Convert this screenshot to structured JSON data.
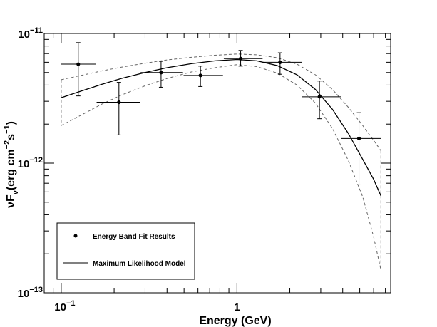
{
  "chart_data": {
    "type": "scatter",
    "xscale": "log",
    "yscale": "log",
    "xlim": [
      0.08,
      7.5
    ],
    "ylim": [
      1e-13,
      1e-11
    ],
    "xlabel": "Energy (GeV)",
    "ylabel": "νF",
    "ylabel_sub": "ν",
    "ylabel_units": "(erg cm",
    "ylabel_sup1": "−2",
    "ylabel_mid": "s",
    "ylabel_sup2": "−1",
    "ylabel_close": ")",
    "x_ticks": [
      {
        "value": 0.1,
        "base": "10",
        "exp": "−1"
      },
      {
        "value": 1,
        "base": "1",
        "exp": ""
      }
    ],
    "y_ticks": [
      {
        "value": 1e-11,
        "base": "10",
        "exp": "−11"
      },
      {
        "value": 1e-12,
        "base": "10",
        "exp": "−12"
      },
      {
        "value": 1e-13,
        "base": "10",
        "exp": "−13"
      }
    ],
    "data_points": [
      {
        "x": 0.125,
        "xlo": 0.1,
        "xhi": 0.157,
        "y": 5.8e-12,
        "ylo": 3.3e-12,
        "yhi": 8.5e-12
      },
      {
        "x": 0.213,
        "xlo": 0.159,
        "xhi": 0.282,
        "y": 2.95e-12,
        "ylo": 1.65e-12,
        "yhi": 4.2e-12
      },
      {
        "x": 0.37,
        "xlo": 0.283,
        "xhi": 0.493,
        "y": 5e-12,
        "ylo": 3.85e-12,
        "yhi": 6.1e-12
      },
      {
        "x": 0.62,
        "xlo": 0.497,
        "xhi": 0.833,
        "y": 4.75e-12,
        "ylo": 3.9e-12,
        "yhi": 5.6e-12
      },
      {
        "x": 1.05,
        "xlo": 0.842,
        "xhi": 1.4,
        "y": 6.4e-12,
        "ylo": 5.6e-12,
        "yhi": 7.4e-12
      },
      {
        "x": 1.76,
        "xlo": 1.4,
        "xhi": 2.34,
        "y": 6e-12,
        "ylo": 4.85e-12,
        "yhi": 7.1e-12
      },
      {
        "x": 2.95,
        "xlo": 2.35,
        "xhi": 3.92,
        "y": 3.25e-12,
        "ylo": 2.2e-12,
        "yhi": 4.3e-12
      },
      {
        "x": 4.95,
        "xlo": 3.92,
        "xhi": 6.6,
        "y": 1.55e-12,
        "ylo": 6.8e-13,
        "yhi": 2.45e-12
      }
    ],
    "model": {
      "x": [
        0.1,
        0.13,
        0.17,
        0.22,
        0.3,
        0.4,
        0.55,
        0.75,
        1.0,
        1.3,
        1.7,
        2.2,
        2.8,
        3.5,
        4.3,
        5.2,
        6.0,
        6.6
      ],
      "y": [
        3.2e-12,
        3.6e-12,
        4.05e-12,
        4.5e-12,
        5e-12,
        5.45e-12,
        5.85e-12,
        6.15e-12,
        6.3e-12,
        6.15e-12,
        5.65e-12,
        4.8e-12,
        3.7e-12,
        2.6e-12,
        1.7e-12,
        1.07e-12,
        7.5e-13,
        5.6e-13
      ]
    },
    "band_upper": {
      "x": [
        0.1,
        0.13,
        0.17,
        0.22,
        0.3,
        0.4,
        0.55,
        0.75,
        1.0,
        1.3,
        1.7,
        2.2,
        2.8,
        3.5,
        4.3,
        5.2,
        6.0,
        6.6
      ],
      "y": [
        4.4e-12,
        4.75e-12,
        5.15e-12,
        5.5e-12,
        5.9e-12,
        6.25e-12,
        6.55e-12,
        6.8e-12,
        6.95e-12,
        6.85e-12,
        6.5e-12,
        5.8e-12,
        4.8e-12,
        3.7e-12,
        2.7e-12,
        1.95e-12,
        1.5e-12,
        1.25e-12
      ]
    },
    "band_lower": {
      "x": [
        0.1,
        0.13,
        0.17,
        0.22,
        0.3,
        0.4,
        0.55,
        0.75,
        1.0,
        1.3,
        1.7,
        2.2,
        2.8,
        3.5,
        4.3,
        5.2,
        6.0,
        6.6
      ],
      "y": [
        1.95e-12,
        2.35e-12,
        2.85e-12,
        3.35e-12,
        3.95e-12,
        4.5e-12,
        5.05e-12,
        5.45e-12,
        5.75e-12,
        5.55e-12,
        4.95e-12,
        4e-12,
        2.9e-12,
        1.85e-12,
        1.05e-12,
        5.5e-13,
        2.7e-13,
        1.5e-13
      ]
    },
    "legend": {
      "position": "bottom-left",
      "entries": [
        {
          "label": "Energy Band Fit Results",
          "marker": "point"
        },
        {
          "label": "Maximum Likelihood Model",
          "marker": "line"
        }
      ]
    },
    "colors": {
      "axis": "#000000",
      "data": "#000000",
      "model": "#000000",
      "band": "#666666",
      "background": "#ffffff"
    }
  }
}
